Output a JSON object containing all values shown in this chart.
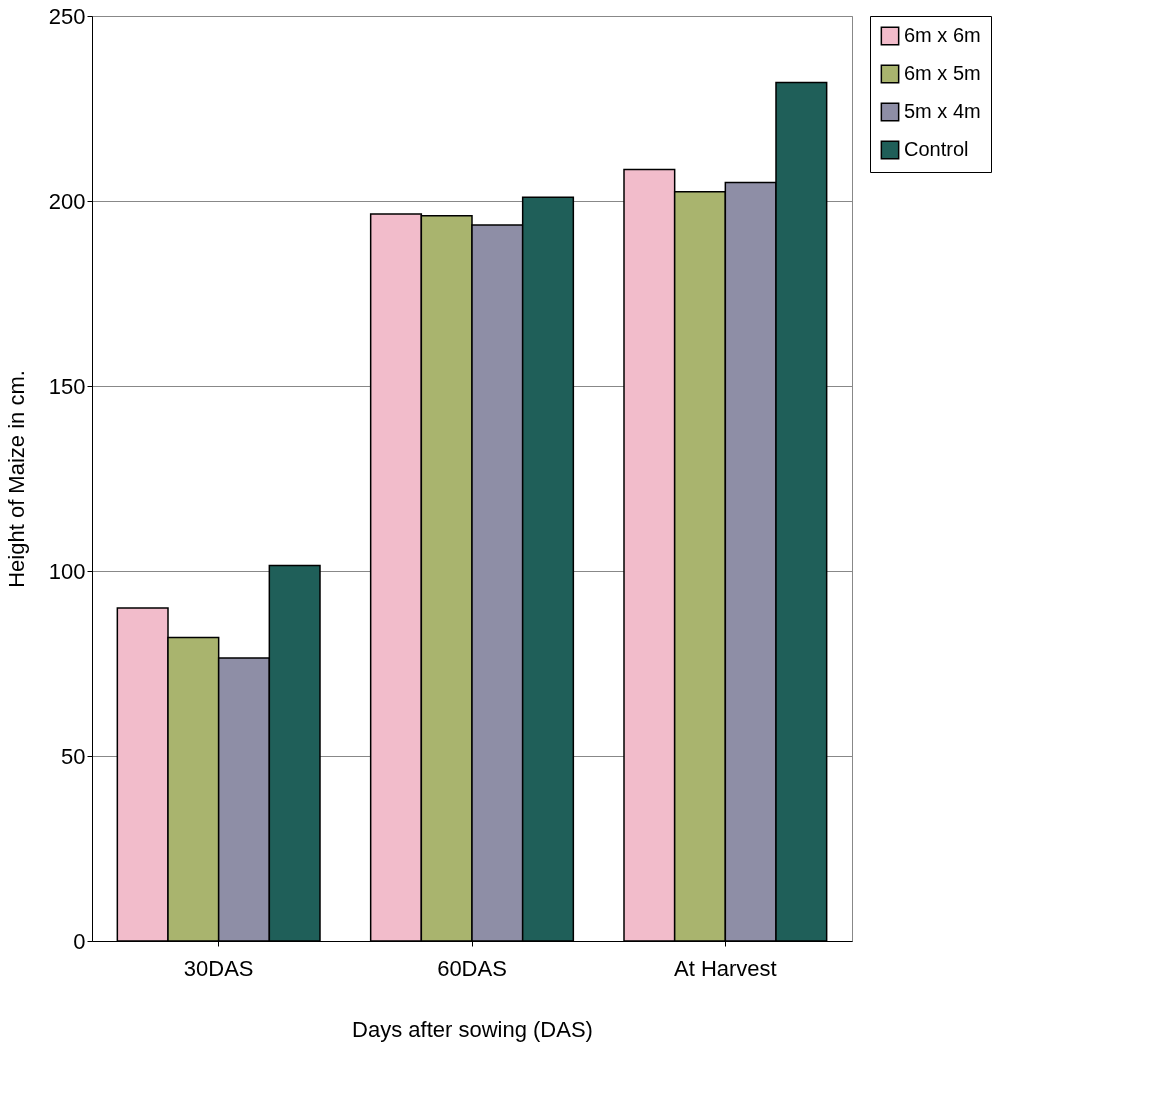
{
  "chart_data": {
    "type": "bar",
    "xlabel": "Days after sowing (DAS)",
    "ylabel": "Height of Maize in cm.",
    "categories": [
      "30DAS",
      "60DAS",
      "At Harvest"
    ],
    "series": [
      {
        "name": "6m x 6m",
        "color": "#f2bccb",
        "values": [
          90,
          196.5,
          208.5
        ]
      },
      {
        "name": "6m x 5m",
        "color": "#a9b46e",
        "values": [
          82,
          196,
          202.5
        ]
      },
      {
        "name": "5m x 4m",
        "color": "#8e8ea6",
        "values": [
          76.5,
          193.5,
          205
        ]
      },
      {
        "name": "Control",
        "color": "#1f5f59",
        "values": [
          101.5,
          201,
          232
        ]
      }
    ],
    "ylim": [
      0,
      250
    ],
    "yticks": [
      0,
      50,
      100,
      150,
      200,
      250
    ],
    "grid": "y",
    "legend": "right"
  }
}
